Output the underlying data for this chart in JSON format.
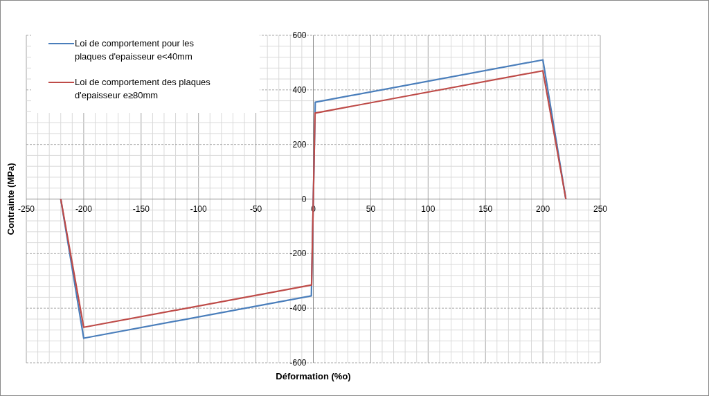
{
  "chart_data": {
    "type": "line",
    "xlabel": "Déformation (%o)",
    "ylabel": "Contrainte (MPa)",
    "xlim": [
      -250,
      250
    ],
    "xticks": [
      -250,
      -200,
      -150,
      -100,
      -50,
      0,
      50,
      100,
      150,
      200,
      250
    ],
    "ylim": [
      -600,
      600
    ],
    "yticks": [
      -600,
      -400,
      -200,
      0,
      200,
      400,
      600
    ],
    "grid": true,
    "legend": "top left",
    "line_style": "solid",
    "marker": "none",
    "series": [
      {
        "name": "Loi de comportement pour les plaques d'epaisseur e<40mm",
        "color": "#4a7ebb",
        "x": [
          -220,
          -200,
          -1.7,
          1.7,
          200,
          220
        ],
        "values": [
          0,
          -510,
          -355,
          355,
          510,
          0
        ]
      },
      {
        "name": "Loi de comportement des plaques d'epaisseur e≥80mm",
        "color": "#be4b48",
        "x": [
          -220,
          -200,
          -1.5,
          1.5,
          200,
          220
        ],
        "values": [
          0,
          -470,
          -315,
          315,
          470,
          0
        ]
      }
    ]
  }
}
